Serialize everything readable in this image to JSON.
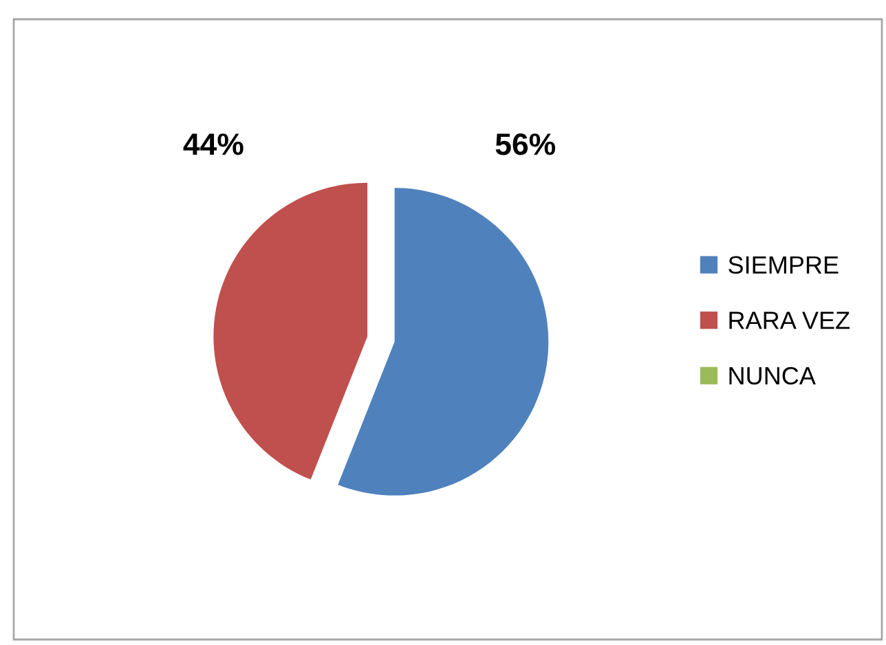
{
  "chart_data": {
    "type": "pie",
    "categories": [
      "SIEMPRE",
      "RARA VEZ",
      "NUNCA"
    ],
    "values": [
      56,
      44,
      0
    ],
    "colors": [
      "#4f81bd",
      "#c0504d",
      "#9bbb59"
    ],
    "value_labels": [
      "56%",
      "44%",
      null
    ],
    "legend": "right"
  }
}
